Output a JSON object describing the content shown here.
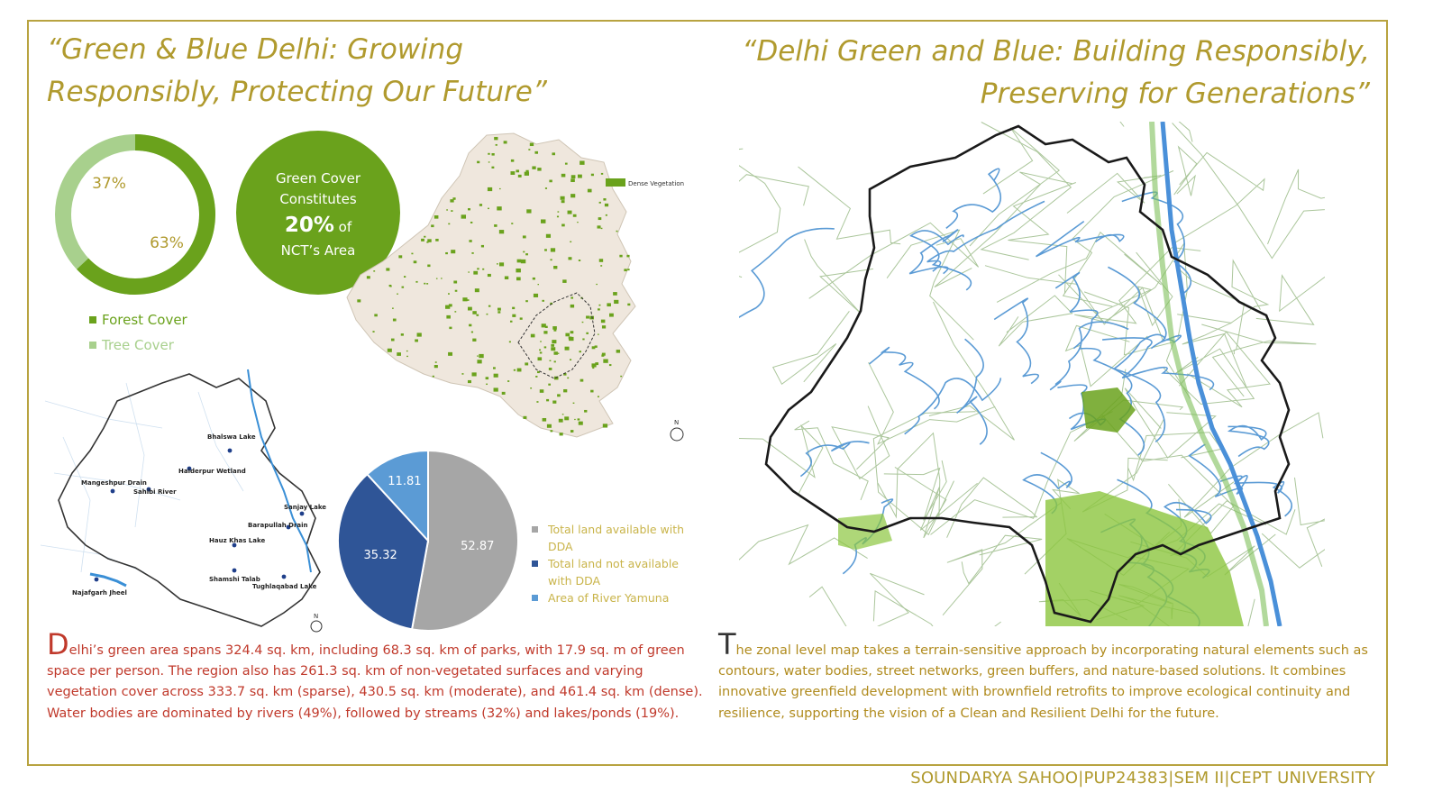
{
  "titles": {
    "left_line1": "“Green & Blue Delhi: Growing",
    "left_line2": "Responsibly, Protecting Our Future”",
    "right_line1": "“Delhi Green and Blue: Building Responsibly,",
    "right_line2": "Preserving for Generations”"
  },
  "donut": {
    "label_tree": "37%",
    "label_forest": "63%",
    "legend_forest": "Forest Cover",
    "legend_tree": "Tree Cover",
    "color_forest": "#6aa21c",
    "color_tree": "#a8d08d"
  },
  "badge": {
    "line1": "Green Cover",
    "line2": "Constitutes",
    "big": "20%",
    "of": " of",
    "line4": "NCT’s Area"
  },
  "veg_map": {
    "legend": "Dense Vegetation",
    "north": "N"
  },
  "water_map": {
    "north": "N",
    "labels": [
      "Bhalswa Lake",
      "Haiderpur Wetland",
      "Mangeshpur Drain",
      "Sahibi River",
      "Sanjay Lake",
      "Barapullah Drain",
      "Hauz Khas Lake",
      "Shamshi Talab",
      "Tughlaqabad Lake",
      "Najafgarh Jheel"
    ]
  },
  "chart_data": {
    "type": "pie",
    "categories": [
      "Total land available with DDA",
      "Total land not available with DDA",
      "Area of River Yamuna"
    ],
    "values": [
      52.87,
      35.32,
      11.81
    ],
    "labels": [
      "52.87",
      "35.32",
      "11.81"
    ],
    "colors": [
      "#a6a6a6",
      "#2f5597",
      "#5b9bd5"
    ],
    "legend_position": "right"
  },
  "pie_legend": {
    "item1_line1": "Total land available with",
    "item1_line2": "DDA",
    "item2_line1": "Total land not available",
    "item2_line2": "with DDA",
    "item3": "Area of River Yamuna"
  },
  "paragraphs": {
    "left_cap": "D",
    "left_text": "elhi’s green area spans 324.4 sq. km, including 68.3 sq. km of parks, with 17.9 sq. m of green space per person. The region also has 261.3 sq. km of non-vegetated surfaces and varying vegetation cover across 333.7 sq. km (sparse), 430.5 sq. km (moderate), and 461.4 sq. km (dense). Water bodies are dominated by rivers (49%), followed by streams (32%) and lakes/ponds (19%).",
    "right_cap": "T",
    "right_text": "he zonal level map takes a terrain-sensitive approach by incorporating natural elements such as contours, water bodies, street networks, green buffers, and nature-based solutions. It combines innovative greenfield development with brownfield retrofits to improve ecological continuity and resilience, supporting the vision of a Clean and Resilient Delhi for the future."
  },
  "footer": "SOUNDARYA SAHOO|PUP24383|SEM II|CEPT UNIVERSITY"
}
